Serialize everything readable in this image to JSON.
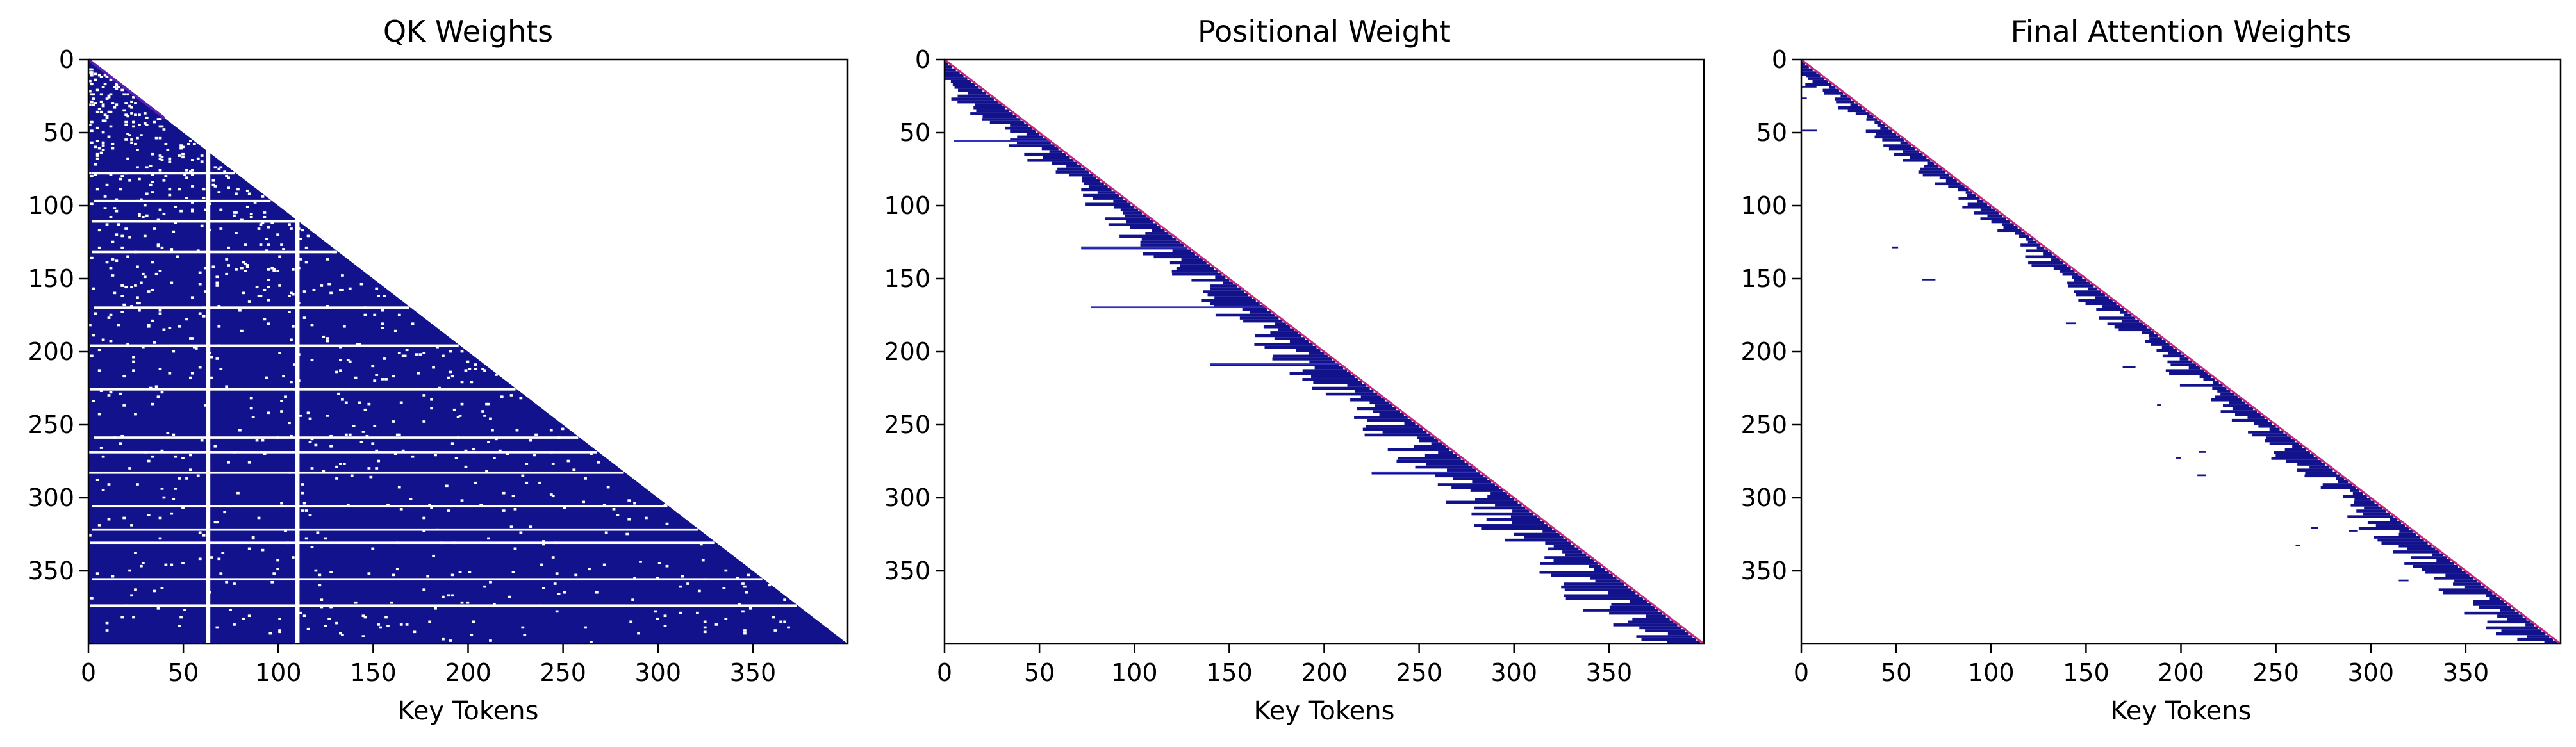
{
  "figure": {
    "background": "#ffffff",
    "cell_color": "#12128c",
    "diagonal_color": "#c8287a"
  },
  "chart_data": [
    {
      "type": "heatmap",
      "title": "QK Weights",
      "xlabel": "Key Tokens",
      "ylabel": "",
      "xlim": [
        0,
        399
      ],
      "ylim": [
        399,
        0
      ],
      "xticks": [
        0,
        50,
        100,
        150,
        200,
        250,
        300,
        350
      ],
      "yticks": [
        0,
        50,
        100,
        150,
        200,
        250,
        300,
        350
      ],
      "mask": "lower-triangular (causal)",
      "fill": "dense",
      "empty_columns": [
        62,
        109
      ],
      "empty_rows": [
        77,
        96,
        110,
        131,
        169,
        195,
        225,
        258,
        268,
        282,
        305,
        321,
        330,
        355,
        373
      ]
    },
    {
      "type": "heatmap",
      "title": "Positional Weight",
      "xlabel": "Key Tokens",
      "ylabel": "",
      "xlim": [
        0,
        399
      ],
      "ylim": [
        399,
        0
      ],
      "xticks": [
        0,
        50,
        100,
        150,
        200,
        250,
        300,
        350
      ],
      "yticks": [
        0,
        50,
        100,
        150,
        200,
        250,
        300,
        350
      ],
      "mask": "lower-triangular (causal)",
      "fill": "band near diagonal",
      "band_width_range": [
        5,
        45
      ],
      "long_rows": [
        {
          "row": 55,
          "from": 5
        },
        {
          "row": 128,
          "from": 72
        },
        {
          "row": 169,
          "from": 77
        },
        {
          "row": 208,
          "from": 140
        },
        {
          "row": 282,
          "from": 225
        }
      ]
    },
    {
      "type": "heatmap",
      "title": "Final Attention Weights",
      "xlabel": "Key Tokens",
      "ylabel": "",
      "xlim": [
        0,
        399
      ],
      "ylim": [
        399,
        0
      ],
      "xticks": [
        0,
        50,
        100,
        150,
        200,
        250,
        300,
        350
      ],
      "yticks": [
        0,
        50,
        100,
        150,
        200,
        250,
        300,
        350
      ],
      "mask": "lower-triangular (causal)",
      "fill": "narrow band near diagonal",
      "band_width_range": [
        3,
        30
      ]
    }
  ]
}
